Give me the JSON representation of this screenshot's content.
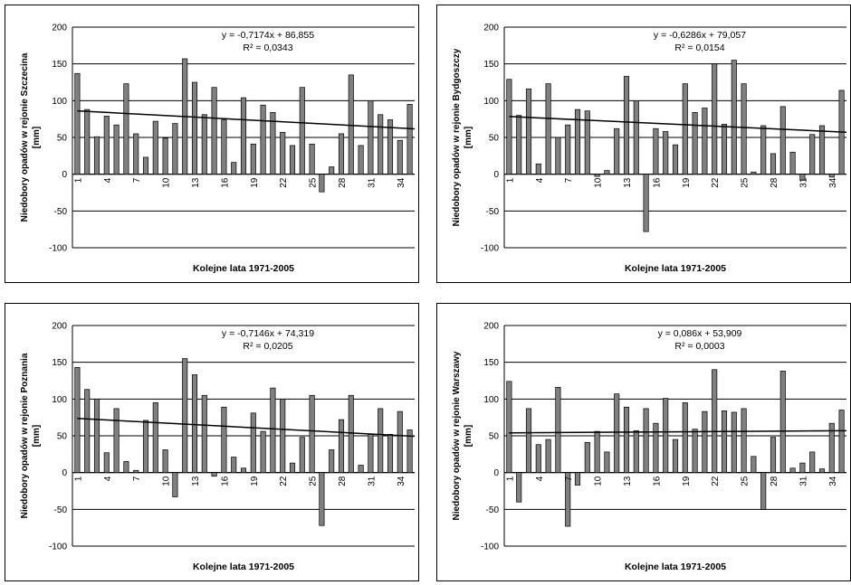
{
  "chart_data": [
    {
      "type": "bar",
      "ylabel": "Niedobory opadów w rejonie Szczecina [mm]",
      "xlabel": "Kolejne lata 1971-2005",
      "ylim": [
        -100,
        200
      ],
      "yticks": [
        -100,
        -50,
        0,
        50,
        100,
        150,
        200
      ],
      "xtick_labels": [
        "1",
        "4",
        "7",
        "10",
        "13",
        "16",
        "19",
        "22",
        "25",
        "28",
        "31",
        "34"
      ],
      "x": [
        1,
        2,
        3,
        4,
        5,
        6,
        7,
        8,
        9,
        10,
        11,
        12,
        13,
        14,
        15,
        16,
        17,
        18,
        19,
        20,
        21,
        22,
        23,
        24,
        25,
        26,
        27,
        28,
        29,
        30,
        31,
        32,
        33,
        34,
        35
      ],
      "values": [
        137,
        88,
        51,
        79,
        67,
        123,
        55,
        23,
        72,
        49,
        69,
        157,
        125,
        81,
        118,
        74,
        16,
        104,
        41,
        94,
        84,
        57,
        39,
        118,
        41,
        -24,
        10,
        55,
        135,
        39,
        100,
        81,
        74,
        46,
        95
      ],
      "trendline": {
        "slope": -0.7174,
        "intercept": 86.855
      },
      "equation": "y = -0,7174x + 86,855",
      "r2": "R² = 0,0343",
      "grid": true,
      "bar_color": "#808080"
    },
    {
      "type": "bar",
      "ylabel": "Niedobory opadów w rejonie Bydgoszczy [mm]",
      "xlabel": "Kolejne lata 1971-2005",
      "ylim": [
        -100,
        200
      ],
      "yticks": [
        -100,
        -50,
        0,
        50,
        100,
        150,
        200
      ],
      "xtick_labels": [
        "1",
        "4",
        "7",
        "10",
        "13",
        "16",
        "19",
        "22",
        "25",
        "28",
        "31",
        "34"
      ],
      "x": [
        1,
        2,
        3,
        4,
        5,
        6,
        7,
        8,
        9,
        10,
        11,
        12,
        13,
        14,
        15,
        16,
        17,
        18,
        19,
        20,
        21,
        22,
        23,
        24,
        25,
        26,
        27,
        28,
        29,
        30,
        31,
        32,
        33,
        34,
        35
      ],
      "values": [
        129,
        80,
        116,
        14,
        123,
        50,
        67,
        88,
        86,
        -3,
        5,
        62,
        133,
        100,
        -78,
        62,
        58,
        40,
        123,
        84,
        90,
        150,
        68,
        155,
        123,
        3,
        66,
        28,
        92,
        30,
        -8,
        54,
        66,
        -4,
        114
      ],
      "trendline": {
        "slope": -0.6286,
        "intercept": 79.057
      },
      "equation": "y = -0,6286x + 79,057",
      "r2": "R² = 0,0154",
      "grid": true,
      "bar_color": "#808080"
    },
    {
      "type": "bar",
      "ylabel": "Niedobory opadów w rejonie Poznania [mm]",
      "xlabel": "Kolejne lata 1971-2005",
      "ylim": [
        -100,
        200
      ],
      "yticks": [
        -100,
        -50,
        0,
        50,
        100,
        150,
        200
      ],
      "xtick_labels": [
        "1",
        "4",
        "7",
        "10",
        "13",
        "16",
        "19",
        "22",
        "25",
        "28",
        "31",
        "34"
      ],
      "x": [
        1,
        2,
        3,
        4,
        5,
        6,
        7,
        8,
        9,
        10,
        11,
        12,
        13,
        14,
        15,
        16,
        17,
        18,
        19,
        20,
        21,
        22,
        23,
        24,
        25,
        26,
        27,
        28,
        29,
        30,
        31,
        32,
        33,
        34,
        35
      ],
      "values": [
        143,
        113,
        100,
        27,
        87,
        15,
        3,
        71,
        95,
        31,
        -33,
        155,
        133,
        105,
        -5,
        89,
        21,
        6,
        81,
        56,
        115,
        100,
        13,
        48,
        105,
        -72,
        31,
        72,
        105,
        10,
        52,
        87,
        52,
        83,
        58
      ],
      "trendline": {
        "slope": -0.7146,
        "intercept": 74.319
      },
      "equation": "y = -0,7146x + 74,319",
      "r2": "R² = 0,0205",
      "grid": true,
      "bar_color": "#808080"
    },
    {
      "type": "bar",
      "ylabel": "Niedobory opadów w rejonie Warszawy [mm]",
      "xlabel": "Kolejne lata 1971-2005",
      "ylim": [
        -100,
        200
      ],
      "yticks": [
        -100,
        -50,
        0,
        50,
        100,
        150,
        200
      ],
      "xtick_labels": [
        "1",
        "4",
        "7",
        "10",
        "13",
        "16",
        "19",
        "22",
        "25",
        "28",
        "31",
        "34"
      ],
      "x": [
        1,
        2,
        3,
        4,
        5,
        6,
        7,
        8,
        9,
        10,
        11,
        12,
        13,
        14,
        15,
        16,
        17,
        18,
        19,
        20,
        21,
        22,
        23,
        24,
        25,
        26,
        27,
        28,
        29,
        30,
        31,
        32,
        33,
        34,
        35
      ],
      "values": [
        124,
        -40,
        87,
        38,
        45,
        116,
        -73,
        -17,
        41,
        56,
        28,
        107,
        89,
        57,
        87,
        67,
        101,
        45,
        95,
        59,
        83,
        140,
        84,
        82,
        87,
        22,
        -50,
        48,
        138,
        6,
        13,
        28,
        5,
        67,
        85
      ],
      "trendline": {
        "slope": 0.086,
        "intercept": 53.909
      },
      "equation": "y = 0,086x + 53,909",
      "r2": "R² = 0,0003",
      "grid": true,
      "bar_color": "#808080"
    }
  ]
}
